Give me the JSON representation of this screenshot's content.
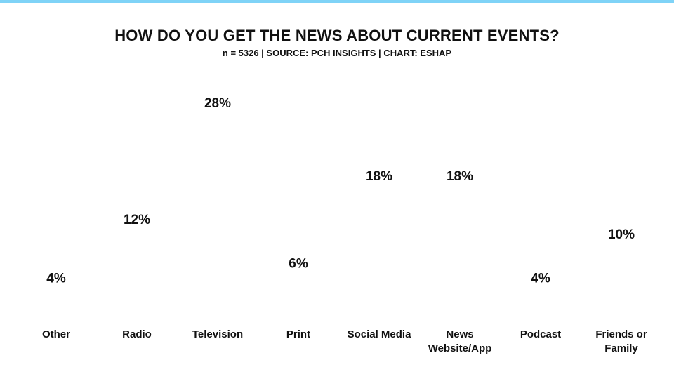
{
  "chart_data": {
    "type": "bar",
    "title": "HOW DO YOU GET THE NEWS ABOUT CURRENT EVENTS?",
    "subtitle": "n = 5326 | SOURCE: PCH INSIGHTS | CHART: ESHAP",
    "categories": [
      "Other",
      "Radio",
      "Television",
      "Print",
      "Social Media",
      "News Website/App",
      "Podcast",
      "Friends or Family"
    ],
    "category_lines": [
      [
        "Other"
      ],
      [
        "Radio"
      ],
      [
        "Television"
      ],
      [
        "Print"
      ],
      [
        "Social Media"
      ],
      [
        "News",
        "Website/App"
      ],
      [
        "Podcast"
      ],
      [
        "Friends or",
        "Family"
      ]
    ],
    "values": [
      4,
      12,
      28,
      6,
      18,
      18,
      4,
      10
    ],
    "value_labels": [
      "4%",
      "12%",
      "28%",
      "6%",
      "18%",
      "18%",
      "4%",
      "10%"
    ],
    "unit_per_icon": 10,
    "icon": "american-flag-sphere-icon",
    "colors": {
      "red": "#b3152b",
      "blue": "#1d2a6b",
      "white": "#ffffff",
      "accent": "#7fd3f7"
    }
  }
}
